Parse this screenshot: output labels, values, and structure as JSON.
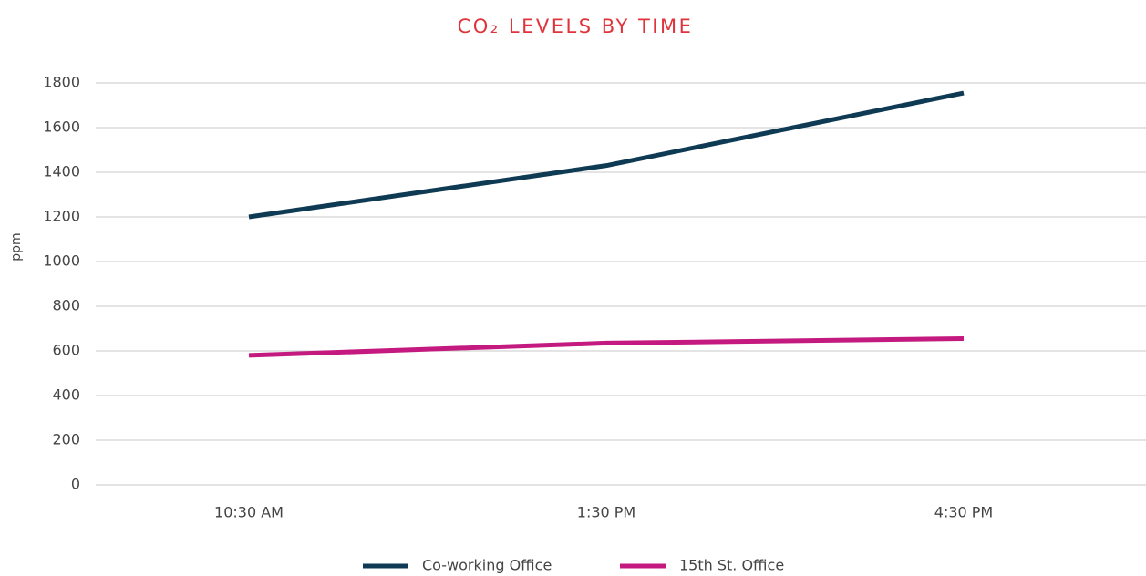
{
  "chart_data": {
    "type": "line",
    "title": "CO₂ LEVELS BY TIME",
    "y_label": "ppm",
    "categories": [
      "10:30 AM",
      "1:30 PM",
      "4:30 PM"
    ],
    "series": [
      {
        "name": "Co-working Office",
        "color": "#0e3a53",
        "values": [
          1200,
          1430,
          1755
        ]
      },
      {
        "name": "15th St. Office",
        "color": "#c41a7f",
        "values": [
          580,
          635,
          655
        ]
      }
    ],
    "ylim": [
      0,
      1800
    ],
    "yticks": [
      0,
      200,
      400,
      600,
      800,
      1000,
      1200,
      1400,
      1600,
      1800
    ],
    "grid": true,
    "legend": "bottom"
  }
}
